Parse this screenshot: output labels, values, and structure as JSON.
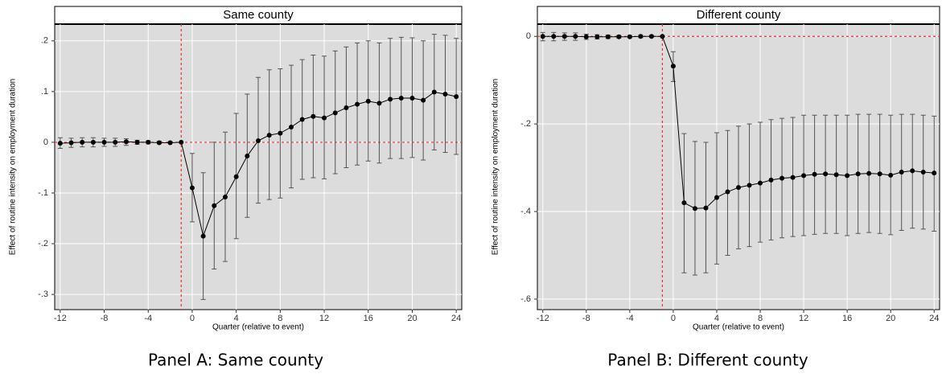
{
  "chart_data": [
    {
      "type": "errorbar-line",
      "title": "Same county",
      "caption": "Panel A: Same county",
      "x_label": "Quarter (relative to event)",
      "y_label": "Effect of routine intensity on employment duration",
      "x": [
        -12,
        -11,
        -10,
        -9,
        -8,
        -7,
        -6,
        -5,
        -4,
        -3,
        -2,
        -1,
        0,
        1,
        2,
        3,
        4,
        5,
        6,
        7,
        8,
        9,
        10,
        11,
        12,
        13,
        14,
        15,
        16,
        17,
        18,
        19,
        20,
        21,
        22,
        23,
        24
      ],
      "values": [
        -0.002,
        -0.001,
        0,
        0,
        0,
        0,
        0.001,
        0,
        0,
        -0.001,
        -0.001,
        0,
        -0.09,
        -0.185,
        -0.125,
        -0.108,
        -0.068,
        -0.027,
        0.003,
        0.014,
        0.018,
        0.03,
        0.045,
        0.051,
        0.048,
        0.058,
        0.068,
        0.075,
        0.081,
        0.077,
        0.085,
        0.087,
        0.087,
        0.083,
        0.099,
        0.095,
        0.09
      ],
      "lower": [
        -0.012,
        -0.01,
        -0.009,
        -0.009,
        -0.008,
        -0.008,
        -0.006,
        -0.004,
        -0.003,
        -0.003,
        -0.002,
        0,
        -0.157,
        -0.31,
        -0.25,
        -0.235,
        -0.19,
        -0.148,
        -0.12,
        -0.113,
        -0.11,
        -0.09,
        -0.073,
        -0.07,
        -0.072,
        -0.062,
        -0.05,
        -0.045,
        -0.037,
        -0.041,
        -0.032,
        -0.032,
        -0.03,
        -0.035,
        -0.015,
        -0.02,
        -0.024
      ],
      "upper": [
        0.009,
        0.008,
        0.009,
        0.009,
        0.008,
        0.008,
        0.007,
        0.004,
        0.003,
        0.002,
        0.001,
        0,
        -0.022,
        -0.06,
        0.0,
        0.02,
        0.057,
        0.095,
        0.128,
        0.143,
        0.145,
        0.152,
        0.163,
        0.172,
        0.17,
        0.18,
        0.188,
        0.196,
        0.2,
        0.196,
        0.205,
        0.207,
        0.206,
        0.2,
        0.213,
        0.211,
        0.205
      ],
      "color": "#000000",
      "ref_color": "#e8312a",
      "hline": 0,
      "vline": -1,
      "xlim": [
        -12.5,
        24.5
      ],
      "ylim": [
        -0.33,
        0.233
      ],
      "xticks": [
        -12,
        -8,
        -4,
        0,
        4,
        8,
        12,
        16,
        20,
        24
      ],
      "yticks": [
        {
          "value": 0.2,
          "label": ".2"
        },
        {
          "value": 0.1,
          "label": ".1"
        },
        0,
        {
          "value": -0.1,
          "label": "-.1"
        },
        {
          "value": -0.2,
          "label": "-.2"
        },
        {
          "value": -0.3,
          "label": "-.3"
        }
      ],
      "grid": true
    },
    {
      "type": "errorbar-line",
      "title": "Different county",
      "caption": "Panel B: Different county",
      "x_label": "Quarter (relative to event)",
      "y_label": "Effect of routine intensity on employment duration",
      "x": [
        -12,
        -11,
        -10,
        -9,
        -8,
        -7,
        -6,
        -5,
        -4,
        -3,
        -2,
        -1,
        0,
        1,
        2,
        3,
        4,
        5,
        6,
        7,
        8,
        9,
        10,
        11,
        12,
        13,
        14,
        15,
        16,
        17,
        18,
        19,
        20,
        21,
        22,
        23,
        24
      ],
      "values": [
        0,
        0,
        0,
        0,
        -0.001,
        -0.001,
        -0.001,
        -0.001,
        -0.001,
        0,
        0,
        0,
        -0.068,
        -0.38,
        -0.393,
        -0.392,
        -0.368,
        -0.355,
        -0.345,
        -0.34,
        -0.335,
        -0.328,
        -0.324,
        -0.322,
        -0.318,
        -0.315,
        -0.314,
        -0.316,
        -0.318,
        -0.314,
        -0.313,
        -0.314,
        -0.317,
        -0.31,
        -0.307,
        -0.31,
        -0.312
      ],
      "lower": [
        -0.01,
        -0.01,
        -0.009,
        -0.009,
        -0.007,
        -0.006,
        -0.005,
        -0.004,
        -0.003,
        -0.003,
        -0.002,
        0,
        -0.103,
        -0.54,
        -0.545,
        -0.54,
        -0.52,
        -0.5,
        -0.485,
        -0.48,
        -0.47,
        -0.465,
        -0.46,
        -0.457,
        -0.455,
        -0.452,
        -0.45,
        -0.45,
        -0.455,
        -0.45,
        -0.448,
        -0.45,
        -0.453,
        -0.443,
        -0.438,
        -0.44,
        -0.445
      ],
      "upper": [
        0.009,
        0.009,
        0.008,
        0.008,
        0.005,
        0.004,
        0.003,
        0.002,
        0.002,
        0.003,
        0.002,
        0,
        -0.035,
        -0.222,
        -0.24,
        -0.242,
        -0.22,
        -0.215,
        -0.205,
        -0.2,
        -0.196,
        -0.19,
        -0.187,
        -0.185,
        -0.18,
        -0.18,
        -0.18,
        -0.18,
        -0.18,
        -0.178,
        -0.178,
        -0.178,
        -0.18,
        -0.178,
        -0.178,
        -0.18,
        -0.182
      ],
      "color": "#000000",
      "ref_color": "#e8312a",
      "hline": 0,
      "vline": -1,
      "xlim": [
        -12.5,
        24.5
      ],
      "ylim": [
        -0.624,
        0.028
      ],
      "xticks": [
        -12,
        -8,
        -4,
        0,
        4,
        8,
        12,
        16,
        20,
        24
      ],
      "yticks": [
        0,
        {
          "value": -0.2,
          "label": "-.2"
        },
        {
          "value": -0.4,
          "label": "-.4"
        },
        {
          "value": -0.6,
          "label": "-.6"
        }
      ],
      "grid": true
    }
  ]
}
